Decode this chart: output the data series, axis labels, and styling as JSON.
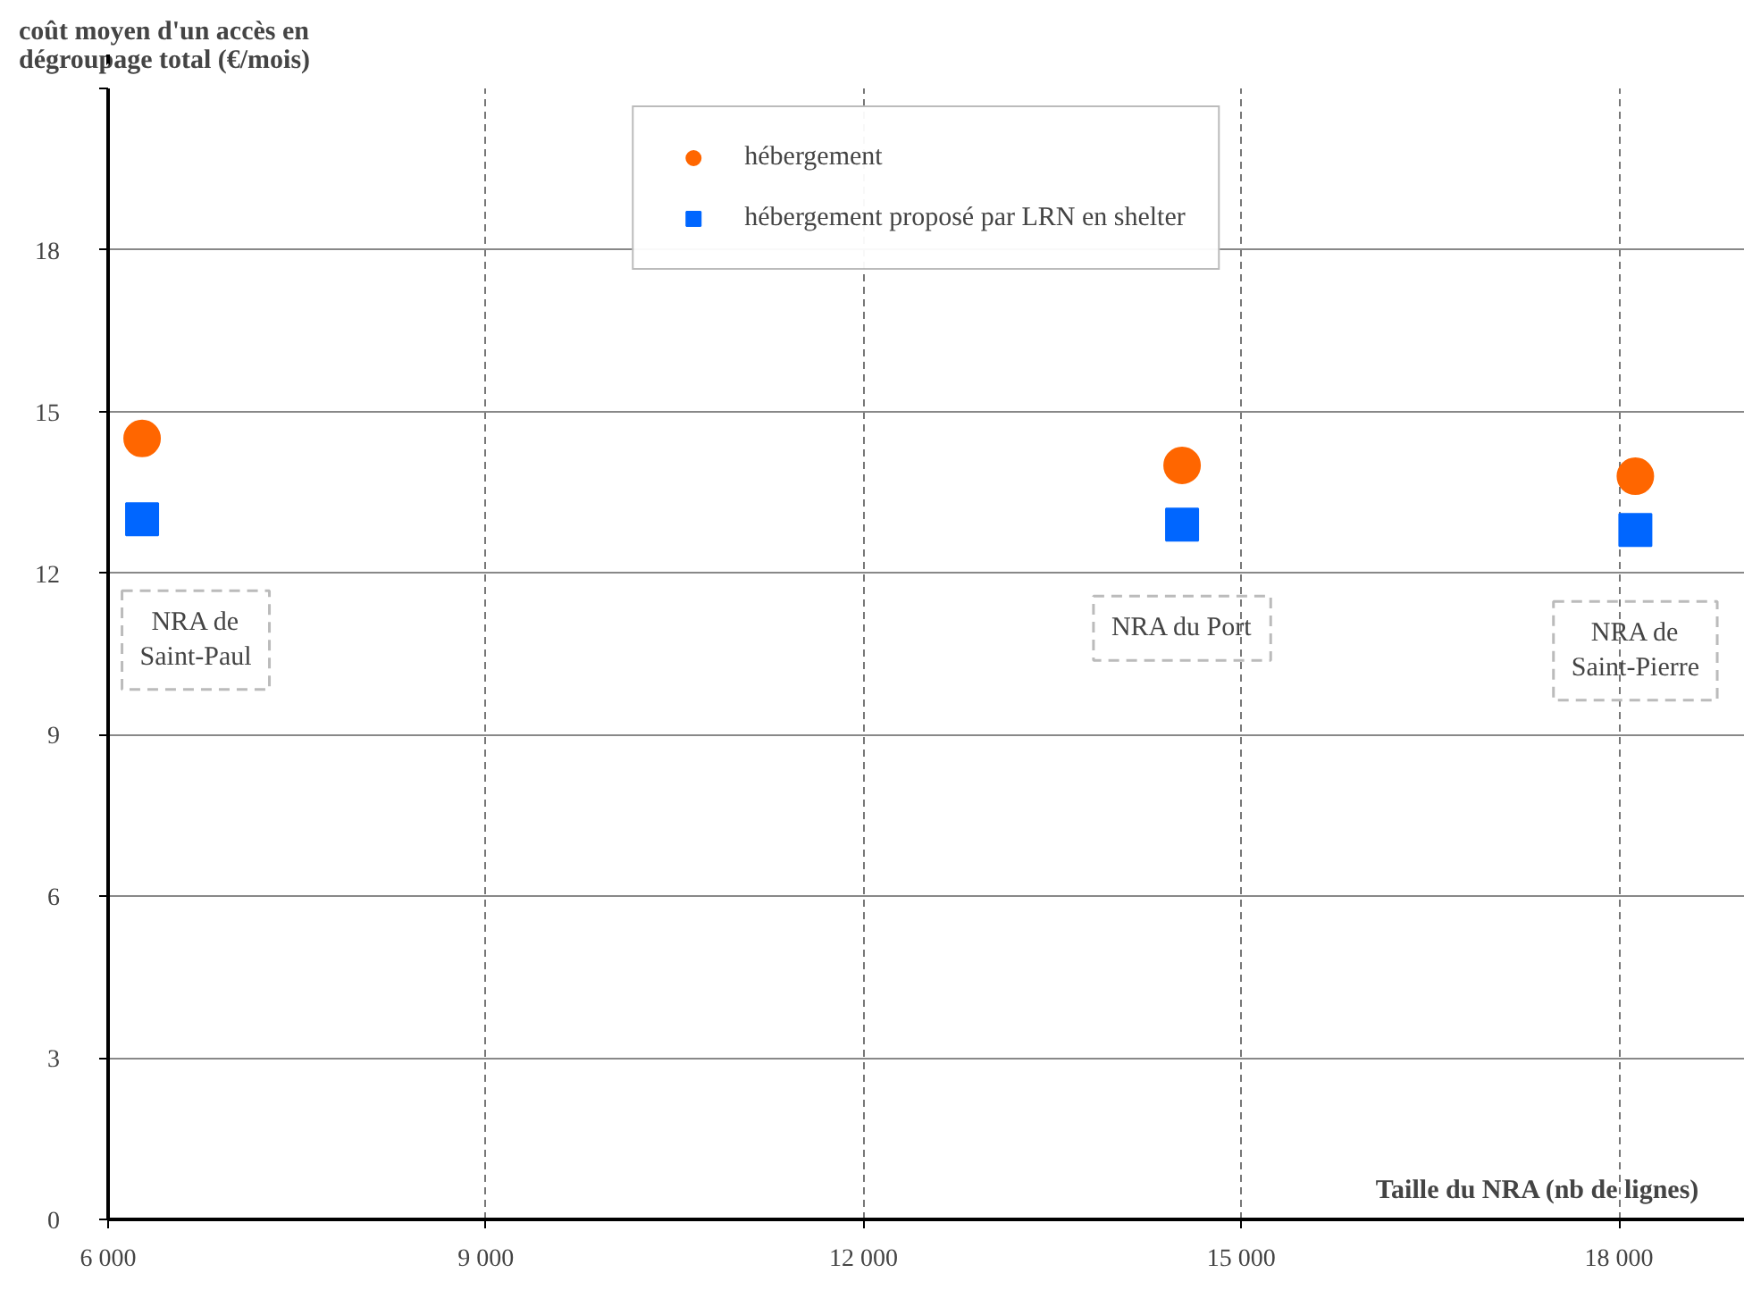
{
  "chart_data": {
    "type": "scatter",
    "ylabel": "coût moyen d'un accès en\ndégroupage total (€/mois)",
    "xlabel": "Taille du NRA (nb de lignes)",
    "x": [
      6270,
      14530,
      18130
    ],
    "series": [
      {
        "name": "hébergement",
        "color": "#ff6600",
        "marker": "circle",
        "values": [
          14.5,
          14.0,
          13.8
        ]
      },
      {
        "name": "hébergement proposé par LRN en shelter",
        "color": "#0066ff",
        "marker": "square",
        "values": [
          13.0,
          12.9,
          12.8
        ]
      }
    ],
    "xlim": [
      6000,
      19000
    ],
    "xticks": [
      {
        "value": 6000,
        "label": "6 000"
      },
      {
        "value": 9000,
        "label": "9 000"
      },
      {
        "value": 12000,
        "label": "12 000"
      },
      {
        "value": 15000,
        "label": "15 000"
      },
      {
        "value": 18000,
        "label": "18 000"
      }
    ],
    "ylim": [
      0,
      21
    ],
    "yticks": [
      0,
      3,
      6,
      9,
      12,
      15,
      18,
      {
        "value": 21,
        "label": null
      }
    ],
    "annotations": [
      "NRA de\nSaint-Paul",
      "NRA du Port",
      "NRA de\nSaint-Pierre"
    ],
    "grid": true,
    "legend": "top"
  }
}
